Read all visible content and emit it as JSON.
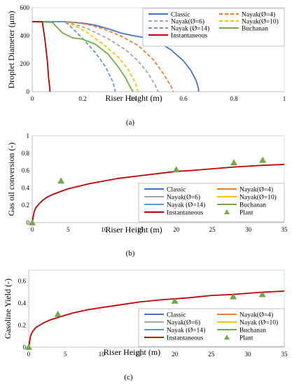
{
  "chart_data": [
    {
      "type": "line",
      "panel_label": "(a)",
      "xlabel": "Riser Height (m)",
      "ylabel": "Droplet Diameter (μm)",
      "xlim": [
        0,
        1
      ],
      "ylim": [
        0,
        600
      ],
      "xticks": [
        0,
        0.2,
        0.4,
        0.6,
        0.8,
        1
      ],
      "yticks": [
        0,
        200,
        400,
        600
      ],
      "xtick_labels": [
        "0",
        "0.2",
        "0.4",
        "0.6",
        "0.8",
        "1"
      ],
      "ytick_labels": [
        "0",
        "200",
        "400",
        "600"
      ],
      "grid": false,
      "legend_position": "top-right",
      "legend_columns": 2,
      "series": [
        {
          "name": "Classic",
          "color": "#4472C4",
          "dash": "solid",
          "x": [
            0,
            0.13,
            0.2,
            0.25,
            0.3,
            0.35,
            0.4,
            0.45,
            0.5,
            0.55,
            0.6,
            0.63,
            0.65,
            0.66,
            0.66
          ],
          "y": [
            500,
            500,
            490,
            475,
            450,
            420,
            400,
            385,
            355,
            300,
            220,
            150,
            80,
            20,
            0
          ]
        },
        {
          "name": "Nayak(Ø=4)",
          "color": "#ED7D31",
          "dash": "dashed",
          "x": [
            0,
            0.13,
            0.17,
            0.22,
            0.28,
            0.35,
            0.42,
            0.48,
            0.52,
            0.55,
            0.56
          ],
          "y": [
            500,
            500,
            495,
            480,
            450,
            400,
            330,
            230,
            130,
            40,
            0
          ]
        },
        {
          "name": "Nayak(Ø=6)",
          "color": "#A5A5A5",
          "dash": "dashed",
          "x": [
            0,
            0.13,
            0.17,
            0.22,
            0.3,
            0.37,
            0.42,
            0.46,
            0.49,
            0.5
          ],
          "y": [
            500,
            500,
            480,
            450,
            380,
            300,
            220,
            130,
            40,
            0
          ]
        },
        {
          "name": "Nayak(Ø=10)",
          "color": "#FFC000",
          "dash": "dashed",
          "x": [
            0,
            0.13,
            0.17,
            0.22,
            0.28,
            0.34,
            0.38,
            0.41,
            0.42
          ],
          "y": [
            500,
            500,
            470,
            420,
            340,
            250,
            160,
            60,
            0
          ]
        },
        {
          "name": "Nayak (Ø=14)",
          "color": "#5B9BD5",
          "dash": "dashed",
          "x": [
            0,
            0.13,
            0.15,
            0.2,
            0.25,
            0.29,
            0.32,
            0.33
          ],
          "y": [
            500,
            500,
            470,
            380,
            280,
            180,
            70,
            0
          ]
        },
        {
          "name": "Buchanan",
          "color": "#70AD47",
          "dash": "solid",
          "x": [
            0,
            0.08,
            0.12,
            0.16,
            0.2,
            0.25,
            0.3,
            0.34,
            0.37,
            0.39,
            0.4
          ],
          "y": [
            500,
            495,
            420,
            385,
            375,
            340,
            270,
            180,
            100,
            30,
            0
          ]
        },
        {
          "name": "Instantaneous",
          "color": "#C00000",
          "dash": "solid",
          "x": [
            0,
            0.04,
            0.05,
            0.06,
            0.065,
            0.07,
            0.07
          ],
          "y": [
            500,
            500,
            380,
            220,
            100,
            20,
            0
          ]
        }
      ]
    },
    {
      "type": "line",
      "panel_label": "(b)",
      "xlabel": "Riser Height (m)",
      "ylabel": "Gas oil conversion (-)",
      "xlim": [
        0,
        35
      ],
      "ylim": [
        0,
        1
      ],
      "xticks": [
        0,
        5,
        10,
        15,
        20,
        25,
        30,
        35
      ],
      "yticks": [
        0,
        0.2,
        0.4,
        0.6,
        0.8,
        1
      ],
      "xtick_labels": [
        "0",
        "5",
        "10",
        "15",
        "20",
        "25",
        "30",
        "35"
      ],
      "ytick_labels": [
        "0",
        "0.2",
        "0.4",
        "0.6",
        "0.8",
        "1"
      ],
      "grid": false,
      "legend_position": "bottom-right",
      "legend_columns": 2,
      "series": [
        {
          "name": "Classic",
          "color": "#4472C4",
          "dash": "solid"
        },
        {
          "name": "Nayak(Ø=4)",
          "color": "#ED7D31",
          "dash": "solid"
        },
        {
          "name": "Nayak(Ø=6)",
          "color": "#A5A5A5",
          "dash": "solid"
        },
        {
          "name": "Nayak(Ø=10)",
          "color": "#FFC000",
          "dash": "solid"
        },
        {
          "name": "Nayak (Ø=14)",
          "color": "#5B9BD5",
          "dash": "solid"
        },
        {
          "name": "Buchanan",
          "color": "#70AD47",
          "dash": "solid"
        },
        {
          "name": "Instantaneous",
          "color": "#C00000",
          "dash": "solid",
          "x": [
            0,
            0.25,
            0.5,
            1,
            1.5,
            2,
            3,
            4,
            5,
            6,
            8,
            10,
            12,
            15,
            18,
            20,
            22,
            25,
            28,
            30,
            32,
            35
          ],
          "y": [
            0,
            0.12,
            0.17,
            0.22,
            0.26,
            0.29,
            0.33,
            0.36,
            0.39,
            0.41,
            0.45,
            0.48,
            0.51,
            0.54,
            0.57,
            0.59,
            0.6,
            0.62,
            0.64,
            0.65,
            0.66,
            0.67
          ]
        },
        {
          "name": "Plant",
          "color": "#70AD47",
          "marker": "triangle",
          "x": [
            0,
            4,
            20,
            28,
            32
          ],
          "y": [
            0,
            0.48,
            0.61,
            0.69,
            0.72
          ]
        }
      ]
    },
    {
      "type": "line",
      "panel_label": "(c)",
      "xlabel": "Riser Height (m)",
      "ylabel": "Gasoline Yield (-)",
      "xlim": [
        0,
        35
      ],
      "ylim": [
        0,
        0.7
      ],
      "xticks": [
        0,
        5,
        10,
        15,
        20,
        25,
        30,
        35
      ],
      "yticks": [
        0,
        0.2,
        0.4,
        0.6
      ],
      "xtick_labels": [
        "0",
        "5",
        "10",
        "15",
        "20",
        "25",
        "30",
        "35"
      ],
      "ytick_labels": [
        "0",
        "0.2",
        "0.4",
        "0.6"
      ],
      "grid": false,
      "legend_position": "bottom-right",
      "legend_columns": 2,
      "series": [
        {
          "name": "Classic",
          "color": "#4472C4",
          "dash": "solid"
        },
        {
          "name": "Nayak(Ø=4)",
          "color": "#ED7D31",
          "dash": "solid"
        },
        {
          "name": "Nayak(Ø=6)",
          "color": "#A5A5A5",
          "dash": "solid"
        },
        {
          "name": "Nayak (Ø=10)",
          "color": "#FFC000",
          "dash": "solid"
        },
        {
          "name": "Nayak (Ø=14)",
          "color": "#5B9BD5",
          "dash": "solid"
        },
        {
          "name": "Buchanan",
          "color": "#70AD47",
          "dash": "solid"
        },
        {
          "name": "Instantaneous",
          "color": "#C00000",
          "dash": "solid",
          "x": [
            0,
            0.25,
            0.5,
            1,
            1.5,
            2,
            3,
            4,
            5,
            6,
            8,
            10,
            12,
            15,
            18,
            20,
            22,
            25,
            28,
            30,
            32,
            35
          ],
          "y": [
            0,
            0.1,
            0.14,
            0.18,
            0.2,
            0.22,
            0.25,
            0.27,
            0.29,
            0.31,
            0.34,
            0.36,
            0.38,
            0.41,
            0.43,
            0.44,
            0.45,
            0.47,
            0.48,
            0.49,
            0.5,
            0.51
          ]
        },
        {
          "name": "Plant",
          "color": "#70AD47",
          "marker": "triangle",
          "x": [
            0,
            4,
            20,
            28,
            32
          ],
          "y": [
            0,
            0.3,
            0.42,
            0.46,
            0.48
          ]
        }
      ]
    }
  ]
}
